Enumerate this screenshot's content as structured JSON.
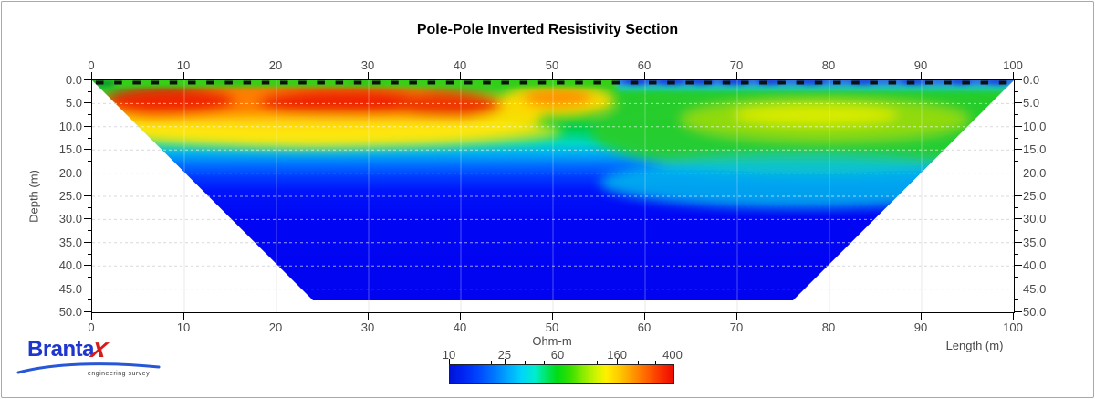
{
  "title": "Pole-Pole Inverted Resistivity Section",
  "axes": {
    "x_ticks": [
      "0",
      "10",
      "20",
      "30",
      "40",
      "50",
      "60",
      "70",
      "80",
      "90",
      "100"
    ],
    "depth_ticks": [
      "0.0",
      "5.0",
      "10.0",
      "15.0",
      "20.0",
      "25.0",
      "30.0",
      "35.0",
      "40.0",
      "45.0",
      "50.0"
    ],
    "depth_label": "Depth (m)",
    "length_label": "Length (m)"
  },
  "colorbar": {
    "title": "Ohm-m",
    "labels": [
      "10",
      "25",
      "60",
      "160",
      "400"
    ]
  },
  "logo": {
    "text_main": "Branta",
    "text_x": "x",
    "tagline": "engineering survey"
  },
  "chart_data": {
    "type": "heatmap",
    "title": "Pole-Pole Inverted Resistivity Section",
    "xlabel": "Length (m)",
    "ylabel": "Depth (m)",
    "xlim": [
      0,
      100
    ],
    "depth_lim": [
      0,
      50
    ],
    "section_max_depth_m": 47.5,
    "section_bottom_extent_m": [
      24,
      76
    ],
    "electrode_marks_spacing_m": 2,
    "grid": {
      "horizontal_spacing_m": 5,
      "vertical_spacing_m": 10,
      "style": "dashed-light"
    },
    "colorbar": {
      "label": "Ohm-m",
      "scale": "log",
      "ticks": [
        10,
        25,
        60,
        160,
        400
      ],
      "range": [
        10,
        400
      ],
      "palette": [
        "#0014d8",
        "#00a8ff",
        "#00dc14",
        "#fff000",
        "#ff9600",
        "#ee0a00"
      ]
    },
    "zones": [
      {
        "description": "thin moderate-resistivity surface layer (green)",
        "x": [
          0,
          57
        ],
        "depth": [
          0,
          1.5
        ],
        "approx_ohm_m": 60
      },
      {
        "description": "high-resistivity near-surface layer (red-orange), cores near x=8, x=27, x=38",
        "x": [
          1,
          45
        ],
        "depth": [
          1,
          9
        ],
        "approx_ohm_m": 300
      },
      {
        "description": "local high-resistivity pocket (orange-yellow)",
        "x": [
          47,
          54
        ],
        "depth": [
          1,
          6
        ],
        "approx_ohm_m": 200
      },
      {
        "description": "low-resistivity surface strip (blue patches)",
        "x": [
          57,
          100
        ],
        "depth": [
          0,
          2.5
        ],
        "approx_ohm_m": 15
      },
      {
        "description": "moderate-resistivity lens (yellow-green)",
        "x": [
          64,
          95
        ],
        "depth": [
          4,
          13
        ],
        "approx_ohm_m": 90
      },
      {
        "description": "intermediate green band",
        "x": [
          0,
          100
        ],
        "depth": [
          2,
          16
        ],
        "approx_ohm_m": 60
      },
      {
        "description": "cyan transition band",
        "x": [
          0,
          100
        ],
        "depth": [
          14,
          22
        ],
        "approx_ohm_m": 28
      },
      {
        "description": "deep conductive zone (uniform blue)",
        "x": [
          0,
          100
        ],
        "depth": [
          22,
          47.5
        ],
        "approx_ohm_m": 10
      }
    ]
  }
}
